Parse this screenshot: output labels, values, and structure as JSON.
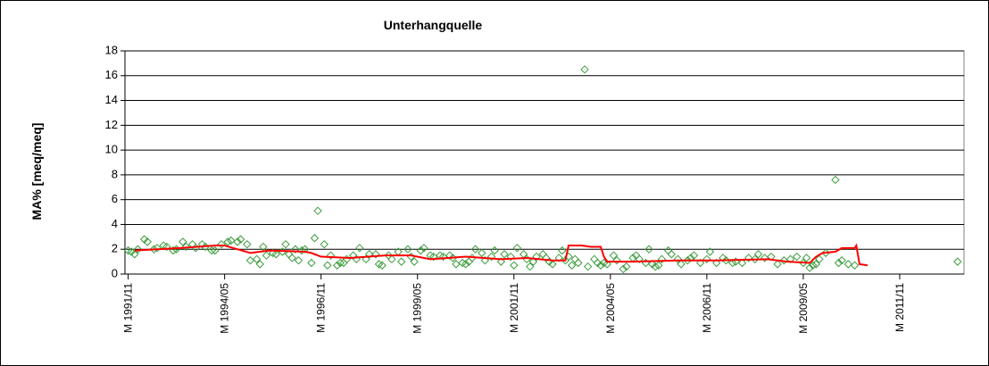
{
  "chart_data": {
    "type": "scatter",
    "title": "Unterhangquelle",
    "y_label": "MA% [meq/meq]",
    "xlim": [
      -1,
      260
    ],
    "ylim": [
      0,
      18
    ],
    "xticks": [
      {
        "value": 0,
        "label": "M 1991/11"
      },
      {
        "value": 30,
        "label": "M 1994/05"
      },
      {
        "value": 60,
        "label": "M 1996/11"
      },
      {
        "value": 90,
        "label": "M 1999/05"
      },
      {
        "value": 120,
        "label": "M 2001/11"
      },
      {
        "value": 150,
        "label": "M 2004/05"
      },
      {
        "value": 180,
        "label": "M 2006/11"
      },
      {
        "value": 210,
        "label": "M 2009/05"
      },
      {
        "value": 240,
        "label": "M 2011/11"
      }
    ],
    "yticks": [
      0,
      2,
      4,
      6,
      8,
      10,
      12,
      14,
      16,
      18
    ],
    "grid": true,
    "series": [
      {
        "mark": "diamond",
        "color": "#3c9c3c",
        "x": [
          0,
          1,
          2,
          3,
          5,
          6,
          8,
          9,
          11,
          12,
          14,
          15,
          17,
          18,
          20,
          21,
          23,
          24,
          26,
          27,
          29,
          31,
          32,
          34,
          35,
          37,
          38,
          40,
          41,
          42,
          43,
          45,
          46,
          48,
          49,
          50,
          51,
          52,
          53,
          54,
          55,
          57,
          58,
          59,
          61,
          62,
          63,
          65,
          66,
          67,
          68,
          70,
          71,
          72,
          74,
          75,
          77,
          78,
          79,
          81,
          82,
          84,
          85,
          87,
          88,
          89,
          91,
          92,
          94,
          95,
          97,
          98,
          100,
          101,
          102,
          104,
          105,
          106,
          107,
          108,
          110,
          111,
          113,
          114,
          116,
          117,
          119,
          120,
          121,
          123,
          124,
          125,
          126,
          127,
          129,
          130,
          131,
          132,
          134,
          135,
          136,
          137,
          138,
          139,
          140,
          142,
          143,
          145,
          146,
          147,
          148,
          149,
          151,
          152,
          154,
          155,
          157,
          158,
          159,
          161,
          162,
          163,
          164,
          165,
          166,
          168,
          169,
          171,
          172,
          174,
          175,
          176,
          178,
          180,
          181,
          183,
          185,
          186,
          188,
          189,
          191,
          193,
          195,
          196,
          198,
          200,
          202,
          204,
          206,
          208,
          210,
          211,
          212,
          213,
          214,
          215,
          217,
          220,
          221,
          222,
          224,
          226,
          258
        ],
        "values": [
          1.9,
          1.8,
          1.6,
          2.0,
          2.8,
          2.6,
          2.0,
          2.1,
          2.3,
          2.2,
          1.9,
          2.0,
          2.6,
          2.2,
          2.4,
          2.1,
          2.4,
          2.2,
          1.9,
          1.9,
          2.4,
          2.6,
          2.7,
          2.6,
          2.8,
          2.4,
          1.1,
          1.2,
          0.8,
          2.2,
          1.5,
          1.7,
          1.6,
          1.8,
          2.4,
          1.6,
          1.3,
          2.0,
          1.1,
          1.9,
          2.0,
          0.9,
          2.9,
          5.1,
          2.4,
          0.7,
          1.5,
          0.7,
          0.9,
          0.9,
          1.2,
          1.5,
          1.2,
          2.1,
          1.2,
          1.6,
          1.6,
          0.8,
          0.7,
          1.5,
          1.2,
          1.8,
          1.0,
          2.0,
          1.4,
          1.0,
          1.9,
          2.1,
          1.5,
          1.4,
          1.5,
          1.4,
          1.5,
          1.3,
          0.8,
          0.9,
          0.8,
          1.0,
          1.3,
          2.0,
          1.7,
          1.1,
          1.4,
          1.9,
          1.0,
          1.6,
          1.4,
          0.7,
          2.1,
          1.6,
          1.2,
          0.6,
          1.0,
          1.4,
          1.6,
          1.3,
          1.0,
          0.8,
          1.3,
          1.9,
          1.1,
          1.4,
          0.7,
          1.2,
          0.9,
          16.5,
          0.6,
          1.2,
          0.9,
          0.7,
          0.9,
          0.8,
          1.5,
          1.1,
          0.4,
          0.6,
          1.3,
          1.5,
          1.2,
          0.9,
          2.0,
          0.8,
          0.6,
          0.7,
          1.2,
          1.9,
          1.6,
          1.2,
          0.8,
          1.1,
          1.3,
          1.5,
          0.9,
          1.2,
          1.8,
          0.9,
          1.3,
          1.1,
          0.9,
          1.0,
          0.9,
          1.3,
          1.2,
          1.6,
          1.3,
          1.4,
          0.8,
          1.1,
          1.2,
          1.4,
          0.9,
          1.3,
          0.5,
          0.7,
          0.8,
          1.2,
          1.7,
          7.6,
          0.9,
          1.1,
          0.8,
          0.7,
          1.0
        ]
      },
      {
        "mark": "line",
        "color": "#ff0000",
        "x": [
          2,
          16,
          27,
          30,
          34,
          38,
          44,
          55,
          57,
          60,
          69,
          80,
          88,
          94,
          105,
          116,
          124,
          132,
          136,
          137,
          141,
          144,
          147,
          148,
          149,
          157,
          171,
          183,
          199,
          205,
          212,
          214,
          216,
          220,
          222,
          226,
          226.5,
          227.5,
          230
        ],
        "values": [
          1.9,
          2.1,
          2.3,
          2.3,
          2.0,
          1.7,
          1.9,
          1.8,
          1.7,
          1.4,
          1.3,
          1.5,
          1.5,
          1.2,
          1.4,
          1.2,
          1.3,
          1.1,
          1.1,
          2.3,
          2.3,
          2.2,
          2.2,
          1.4,
          1.0,
          1.0,
          1.1,
          1.1,
          1.2,
          1.0,
          0.9,
          1.4,
          1.7,
          1.8,
          2.1,
          2.1,
          2.3,
          0.8,
          0.7
        ]
      }
    ]
  }
}
